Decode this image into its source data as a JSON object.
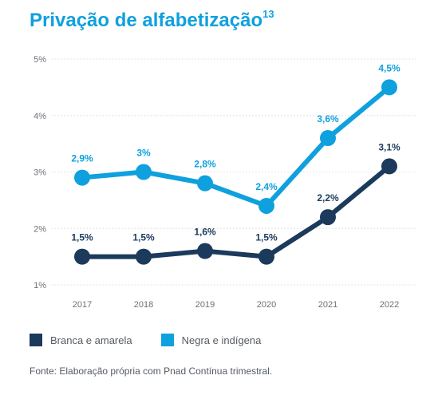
{
  "title": "Privação de alfabetização",
  "title_note": "13",
  "chart_data": {
    "type": "line",
    "x": [
      "2017",
      "2018",
      "2019",
      "2020",
      "2021",
      "2022"
    ],
    "yticks": [
      "1%",
      "2%",
      "3%",
      "4%",
      "5%"
    ],
    "ylim": [
      1,
      5
    ],
    "grid": true,
    "legend_position": "bottom-left",
    "series": [
      {
        "name": "Branca e amarela",
        "color": "#1b3a5c",
        "values": [
          1.5,
          1.5,
          1.6,
          1.5,
          2.2,
          3.1
        ],
        "labels": [
          "1,5%",
          "1,5%",
          "1,6%",
          "1,5%",
          "2,2%",
          "3,1%"
        ]
      },
      {
        "name": "Negra e indígena",
        "color": "#0fa0de",
        "values": [
          2.9,
          3.0,
          2.8,
          2.4,
          3.6,
          4.5
        ],
        "labels": [
          "2,9%",
          "3%",
          "2,8%",
          "2,4%",
          "3,6%",
          "4,5%"
        ]
      }
    ]
  },
  "source": "Fonte: Elaboração própria com Pnad Contínua trimestral."
}
